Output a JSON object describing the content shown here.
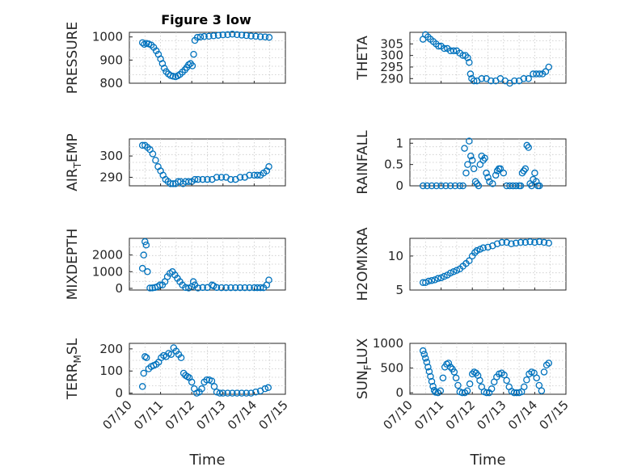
{
  "figure": {
    "title": "Figure 3 low",
    "accent_color": "#0072BD",
    "marker": "circle"
  },
  "chart_data": [
    {
      "type": "scatter",
      "title": "Figure 3 low",
      "ylabel": "PRESSURE",
      "xlabel": "",
      "xlim": [
        10,
        15
      ],
      "ylim": [
        800,
        1020
      ],
      "yticks": [
        800,
        900,
        1000
      ],
      "xticks": [],
      "grid": true,
      "x": [
        10.42,
        10.48,
        10.55,
        10.62,
        10.7,
        10.78,
        10.86,
        10.93,
        11.0,
        11.06,
        11.12,
        11.18,
        11.25,
        11.32,
        11.4,
        11.48,
        11.55,
        11.62,
        11.7,
        11.78,
        11.84,
        11.9,
        11.96,
        12.02,
        12.06,
        12.1,
        12.18,
        12.28,
        12.4,
        12.55,
        12.7,
        12.85,
        13.0,
        13.15,
        13.3,
        13.45,
        13.6,
        13.75,
        13.9,
        14.05,
        14.2,
        14.35,
        14.48
      ],
      "y": [
        975,
        968,
        972,
        970,
        965,
        955,
        940,
        925,
        905,
        885,
        865,
        850,
        840,
        833,
        830,
        828,
        832,
        838,
        848,
        858,
        868,
        880,
        885,
        875,
        925,
        985,
        998,
        1000,
        1002,
        1003,
        1005,
        1007,
        1009,
        1010,
        1012,
        1010,
        1008,
        1006,
        1004,
        1003,
        1001,
        1000,
        998
      ]
    },
    {
      "type": "scatter",
      "ylabel": "THETA",
      "xlabel": "",
      "xlim": [
        10,
        15
      ],
      "ylim": [
        288,
        310
      ],
      "yticks": [
        290,
        295,
        300,
        305
      ],
      "xticks": [],
      "grid": true,
      "x": [
        10.42,
        10.5,
        10.58,
        10.66,
        10.75,
        10.84,
        10.92,
        11.0,
        11.1,
        11.2,
        11.3,
        11.4,
        11.5,
        11.6,
        11.7,
        11.78,
        11.85,
        11.9,
        11.94,
        11.98,
        12.05,
        12.15,
        12.3,
        12.45,
        12.6,
        12.75,
        12.9,
        13.05,
        13.2,
        13.35,
        13.5,
        13.65,
        13.8,
        13.95,
        14.05,
        14.15,
        14.25,
        14.35,
        14.45
      ],
      "y": [
        307,
        309,
        308,
        307,
        306,
        305,
        304,
        304,
        303,
        303,
        302,
        302,
        302,
        301,
        300,
        300,
        299,
        297,
        292,
        290,
        289,
        289,
        290,
        290,
        289,
        289,
        290,
        289,
        288,
        289,
        289,
        290,
        290,
        292,
        292,
        292,
        292,
        293,
        295
      ]
    },
    {
      "type": "scatter",
      "ylabel": "AIR_TEMP",
      "xlabel": "",
      "xlim": [
        10,
        15
      ],
      "ylim": [
        286,
        308
      ],
      "yticks": [
        290,
        300
      ],
      "xticks": [],
      "grid": true,
      "x": [
        10.42,
        10.5,
        10.58,
        10.66,
        10.75,
        10.84,
        10.92,
        11.0,
        11.08,
        11.16,
        11.24,
        11.32,
        11.4,
        11.48,
        11.56,
        11.64,
        11.72,
        11.8,
        11.9,
        12.0,
        12.1,
        12.2,
        12.35,
        12.5,
        12.65,
        12.8,
        12.95,
        13.1,
        13.25,
        13.4,
        13.55,
        13.7,
        13.85,
        14.0,
        14.1,
        14.2,
        14.3,
        14.4,
        14.47
      ],
      "y": [
        305,
        305,
        304,
        303,
        301,
        298,
        295,
        293,
        291,
        289,
        288,
        287,
        287,
        287,
        288,
        288,
        287,
        288,
        288,
        288,
        289,
        289,
        289,
        289,
        289,
        290,
        290,
        290,
        289,
        289,
        290,
        290,
        291,
        291,
        291,
        291,
        292,
        293,
        295
      ]
    },
    {
      "type": "scatter",
      "ylabel": "RAINFALL",
      "xlabel": "",
      "xlim": [
        10,
        15
      ],
      "ylim": [
        0,
        1.1
      ],
      "yticks": [
        0,
        0.5,
        1
      ],
      "xticks": [],
      "grid": true,
      "x": [
        10.42,
        10.55,
        10.7,
        10.85,
        11.0,
        11.15,
        11.3,
        11.45,
        11.6,
        11.7,
        11.75,
        11.8,
        11.85,
        11.9,
        11.95,
        12.0,
        12.05,
        12.1,
        12.15,
        12.2,
        12.25,
        12.3,
        12.35,
        12.4,
        12.45,
        12.5,
        12.55,
        12.65,
        12.75,
        12.8,
        12.85,
        12.9,
        13.0,
        13.1,
        13.2,
        13.3,
        13.4,
        13.5,
        13.55,
        13.6,
        13.65,
        13.7,
        13.75,
        13.8,
        13.85,
        13.9,
        13.95,
        14.0,
        14.05,
        14.1,
        14.15
      ],
      "y": [
        0,
        0,
        0,
        0,
        0,
        0,
        0,
        0,
        0,
        0,
        0.88,
        0.3,
        0.5,
        1.05,
        0.7,
        0.6,
        0.4,
        0.1,
        0.05,
        0,
        0.5,
        0.7,
        0.6,
        0.65,
        0.3,
        0.2,
        0.1,
        0.05,
        0.25,
        0.35,
        0.4,
        0.4,
        0.3,
        0,
        0,
        0,
        0,
        0,
        0,
        0.3,
        0.35,
        0.4,
        0.95,
        0.9,
        0.05,
        0,
        0.15,
        0.3,
        0.1,
        0,
        0
      ]
    },
    {
      "type": "scatter",
      "ylabel": "MIXDEPTH",
      "xlabel": "",
      "xlim": [
        10,
        15
      ],
      "ylim": [
        -100,
        3000
      ],
      "yticks": [
        0,
        1000,
        2000
      ],
      "xticks": [],
      "grid": true,
      "x": [
        10.42,
        10.46,
        10.5,
        10.54,
        10.58,
        10.66,
        10.74,
        10.82,
        10.9,
        10.98,
        11.06,
        11.14,
        11.22,
        11.3,
        11.38,
        11.46,
        11.54,
        11.62,
        11.7,
        11.8,
        11.9,
        12.0,
        12.05,
        12.1,
        12.2,
        12.35,
        12.5,
        12.65,
        12.7,
        12.8,
        12.95,
        13.1,
        13.25,
        13.4,
        13.55,
        13.7,
        13.85,
        14.0,
        14.1,
        14.2,
        14.3,
        14.4,
        14.47
      ],
      "y": [
        1200,
        2000,
        2800,
        2600,
        1000,
        20,
        30,
        50,
        100,
        200,
        200,
        400,
        700,
        900,
        1000,
        800,
        600,
        400,
        200,
        50,
        20,
        100,
        400,
        200,
        20,
        50,
        50,
        200,
        150,
        50,
        40,
        40,
        40,
        40,
        40,
        40,
        40,
        40,
        40,
        40,
        40,
        200,
        500
      ]
    },
    {
      "type": "scatter",
      "ylabel": "H2OMIXRA",
      "xlabel": "",
      "xlim": [
        10,
        15
      ],
      "ylim": [
        5,
        12.6
      ],
      "yticks": [
        5,
        10
      ],
      "xticks": [],
      "grid": true,
      "x": [
        10.42,
        10.5,
        10.6,
        10.7,
        10.8,
        10.9,
        11.0,
        11.1,
        11.2,
        11.3,
        11.4,
        11.5,
        11.6,
        11.7,
        11.8,
        11.9,
        12.0,
        12.08,
        12.15,
        12.25,
        12.35,
        12.5,
        12.65,
        12.8,
        12.95,
        13.1,
        13.25,
        13.4,
        13.55,
        13.7,
        13.85,
        14.0,
        14.15,
        14.3,
        14.45
      ],
      "y": [
        6.1,
        6.1,
        6.3,
        6.4,
        6.5,
        6.7,
        6.8,
        7.0,
        7.2,
        7.5,
        7.7,
        7.9,
        8.1,
        8.5,
        8.9,
        9.3,
        10.0,
        10.5,
        10.8,
        11.0,
        11.2,
        11.3,
        11.5,
        11.8,
        12.0,
        12.0,
        11.8,
        11.9,
        12.0,
        12.0,
        12.1,
        12.0,
        12.1,
        12.0,
        11.9
      ]
    },
    {
      "type": "scatter",
      "ylabel": "TERR_MSL",
      "xlabel": "Time",
      "xlim": [
        10,
        15
      ],
      "ylim": [
        -5,
        225
      ],
      "yticks": [
        0,
        100,
        200
      ],
      "xticks": [
        "07/10",
        "07/11",
        "07/12",
        "07/13",
        "07/14",
        "07/15"
      ],
      "grid": true,
      "x": [
        10.42,
        10.46,
        10.5,
        10.55,
        10.62,
        10.7,
        10.78,
        10.86,
        10.94,
        11.02,
        11.1,
        11.18,
        11.26,
        11.34,
        11.42,
        11.5,
        11.58,
        11.66,
        11.74,
        11.8,
        11.86,
        11.92,
        12.0,
        12.08,
        12.16,
        12.24,
        12.32,
        12.4,
        12.48,
        12.56,
        12.64,
        12.72,
        12.8,
        12.9,
        13.0,
        13.15,
        13.3,
        13.45,
        13.6,
        13.75,
        13.9,
        14.05,
        14.2,
        14.35,
        14.45
      ],
      "y": [
        30,
        90,
        165,
        160,
        110,
        120,
        125,
        130,
        140,
        160,
        170,
        165,
        180,
        175,
        205,
        190,
        175,
        160,
        90,
        80,
        75,
        70,
        50,
        20,
        0,
        5,
        20,
        50,
        60,
        60,
        55,
        30,
        5,
        0,
        0,
        0,
        0,
        0,
        0,
        0,
        0,
        5,
        10,
        20,
        25
      ]
    },
    {
      "type": "scatter",
      "ylabel": "SUN_FLUX",
      "xlabel": "Time",
      "xlim": [
        10,
        15
      ],
      "ylim": [
        -30,
        1000
      ],
      "yticks": [
        0,
        500,
        1000
      ],
      "xticks": [
        "07/10",
        "07/11",
        "07/12",
        "07/13",
        "07/14",
        "07/15"
      ],
      "grid": true,
      "x": [
        10.42,
        10.46,
        10.5,
        10.54,
        10.58,
        10.62,
        10.66,
        10.7,
        10.74,
        10.78,
        10.82,
        10.9,
        10.98,
        11.06,
        11.12,
        11.18,
        11.24,
        11.3,
        11.36,
        11.42,
        11.48,
        11.54,
        11.6,
        11.68,
        11.76,
        11.84,
        11.92,
        12.0,
        12.06,
        12.12,
        12.18,
        12.24,
        12.3,
        12.38,
        12.46,
        12.54,
        12.62,
        12.7,
        12.78,
        12.86,
        12.94,
        13.02,
        13.1,
        13.18,
        13.26,
        13.34,
        13.42,
        13.5,
        13.58,
        13.66,
        13.74,
        13.82,
        13.9,
        13.98,
        14.06,
        14.14,
        14.22,
        14.3,
        14.38,
        14.45
      ],
      "y": [
        850,
        780,
        700,
        620,
        520,
        430,
        330,
        230,
        130,
        50,
        10,
        0,
        40,
        300,
        520,
        580,
        600,
        520,
        480,
        420,
        300,
        150,
        20,
        0,
        0,
        40,
        180,
        380,
        420,
        400,
        350,
        250,
        120,
        20,
        0,
        0,
        80,
        220,
        320,
        380,
        400,
        360,
        250,
        120,
        30,
        0,
        0,
        0,
        20,
        120,
        260,
        380,
        420,
        400,
        300,
        150,
        40,
        420,
        560,
        600
      ]
    }
  ]
}
